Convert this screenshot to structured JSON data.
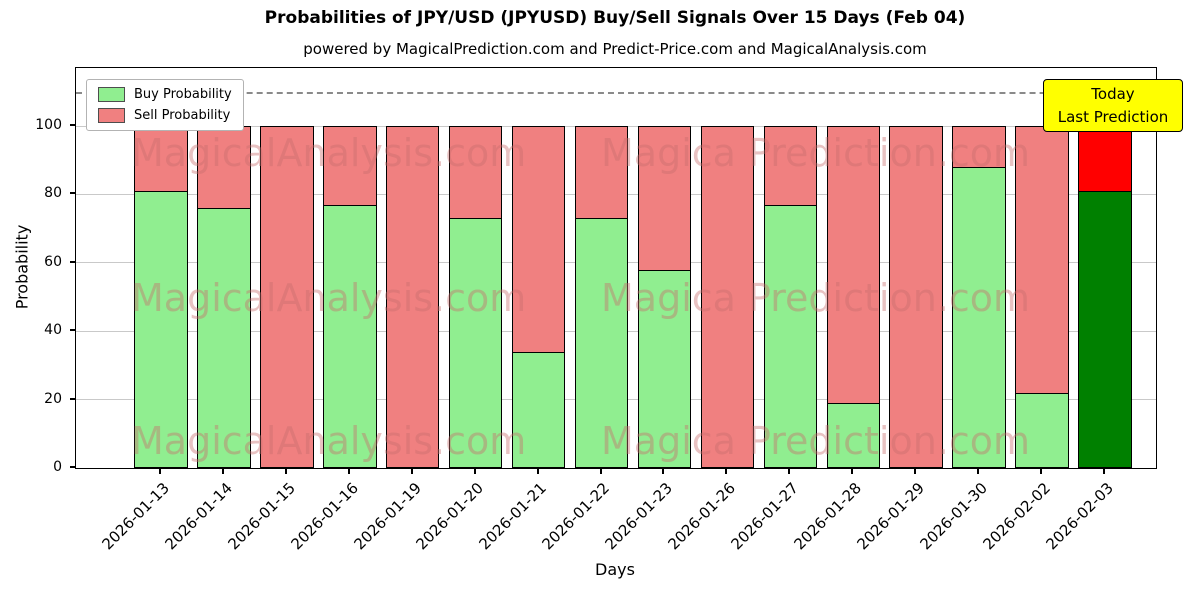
{
  "title": "Probabilities of JPY/USD (JPYUSD) Buy/Sell Signals Over 15 Days (Feb 04)",
  "subtitle": "powered by MagicalPrediction.com and Predict-Price.com and MagicalAnalysis.com",
  "annotation": {
    "line1": "Today",
    "line2": "Last Prediction"
  },
  "watermarks": {
    "left": "MagicalAnalysis.com",
    "right": "Magica Prediction.com",
    "rows": 3
  },
  "colors": {
    "buy": "#90EE90",
    "sell": "#F08080",
    "today_buy": "#008000",
    "today_sell": "#FF0000",
    "annotation_bg": "#FFFF00",
    "grid": "#C9C9C9",
    "dashed_line": "#8A8A8A",
    "watermark": "rgba(199,109,109,0.42)",
    "bar_edge": "#000000"
  },
  "chart_data": {
    "type": "bar",
    "stacked": true,
    "title": "Probabilities of JPY/USD (JPYUSD) Buy/Sell Signals Over 15 Days (Feb 04)",
    "xlabel": "Days",
    "ylabel": "Probability",
    "categories": [
      "2026-01-13",
      "2026-01-14",
      "2026-01-15",
      "2026-01-16",
      "2026-01-19",
      "2026-01-20",
      "2026-01-21",
      "2026-01-22",
      "2026-01-23",
      "2026-01-26",
      "2026-01-27",
      "2026-01-28",
      "2026-01-29",
      "2026-01-30",
      "2026-02-02",
      "2026-02-03"
    ],
    "series": [
      {
        "name": "Buy Probability",
        "values": [
          81,
          76,
          0,
          77,
          0,
          73,
          34,
          73,
          58,
          0,
          77,
          19,
          0,
          88,
          22,
          81
        ]
      },
      {
        "name": "Sell Probability",
        "values": [
          19,
          24,
          100,
          23,
          100,
          27,
          66,
          27,
          42,
          100,
          23,
          81,
          100,
          12,
          78,
          19
        ]
      }
    ],
    "yticks": [
      0,
      20,
      40,
      60,
      80,
      100
    ],
    "ylim": [
      0,
      117
    ],
    "dashed_line_y": 110,
    "today_index": 15,
    "grid": true,
    "legend_position": "upper-left"
  }
}
